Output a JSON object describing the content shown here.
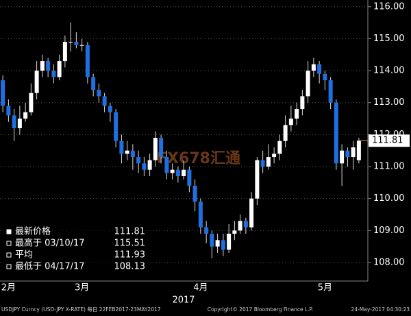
{
  "chart_data": {
    "type": "candlestick",
    "categories": [
      null,
      "2月",
      null,
      null,
      null,
      null,
      null,
      null,
      null,
      null,
      null,
      null,
      null,
      null,
      "3月",
      null,
      null,
      null,
      null,
      null,
      null,
      null,
      null,
      null,
      null,
      null,
      null,
      null,
      null,
      null,
      null,
      null,
      null,
      null,
      null,
      "4月",
      null,
      null,
      null,
      null,
      null,
      null,
      null,
      null,
      null,
      null,
      null,
      null,
      null,
      null,
      null,
      null,
      null,
      null,
      null,
      null,
      null,
      "5月",
      null,
      null,
      null,
      null,
      null,
      null
    ],
    "open": [
      113.7,
      112.9,
      112.6,
      112.2,
      112.5,
      112.7,
      113.3,
      114.0,
      114.3,
      114.0,
      113.8,
      114.3,
      114.9,
      114.9,
      114.8,
      114.8,
      113.8,
      113.4,
      113.2,
      112.9,
      112.7,
      111.8,
      111.4,
      111.5,
      111.3,
      111.1,
      110.9,
      111.2,
      111.9,
      111.3,
      110.8,
      110.9,
      110.7,
      110.9,
      110.4,
      109.9,
      109.1,
      108.9,
      108.5,
      108.7,
      108.4,
      108.9,
      109.0,
      109.3,
      109.1,
      110.0,
      111.2,
      111.0,
      111.3,
      111.4,
      111.8,
      112.3,
      112.5,
      112.8,
      113.2,
      114.0,
      114.2,
      113.9,
      113.7,
      113.0,
      111.1,
      111.5,
      111.3,
      111.2
    ],
    "high": [
      113.85,
      113.1,
      112.8,
      112.9,
      113.0,
      113.6,
      114.3,
      114.5,
      114.4,
      114.2,
      114.5,
      115.1,
      115.51,
      115.2,
      115.0,
      114.9,
      113.9,
      113.6,
      113.3,
      113.0,
      112.8,
      112.0,
      111.8,
      111.7,
      111.5,
      111.3,
      111.4,
      112.1,
      112.0,
      111.5,
      111.1,
      111.0,
      111.2,
      111.0,
      110.6,
      110.0,
      109.3,
      109.0,
      108.9,
      108.9,
      109.2,
      109.3,
      109.5,
      109.4,
      110.2,
      111.3,
      111.5,
      111.7,
      111.6,
      112.0,
      112.6,
      112.9,
      113.0,
      113.4,
      114.3,
      114.4,
      114.3,
      114.0,
      113.8,
      113.1,
      111.7,
      111.6,
      111.8,
      111.9
    ],
    "low": [
      112.7,
      112.4,
      111.8,
      112.0,
      112.4,
      112.6,
      113.1,
      113.8,
      113.8,
      113.6,
      113.7,
      114.1,
      114.6,
      114.7,
      114.6,
      113.6,
      113.2,
      113.0,
      112.7,
      112.4,
      111.6,
      111.1,
      111.2,
      110.9,
      110.8,
      110.7,
      110.7,
      111.0,
      111.1,
      110.6,
      110.6,
      110.5,
      110.6,
      110.2,
      109.6,
      108.9,
      108.6,
      108.13,
      108.3,
      108.2,
      108.3,
      108.7,
      108.9,
      108.9,
      109.0,
      109.8,
      110.8,
      110.9,
      111.1,
      111.2,
      111.6,
      112.1,
      112.3,
      112.6,
      113.0,
      113.8,
      113.6,
      113.4,
      112.8,
      110.9,
      110.4,
      111.0,
      110.9,
      111.1
    ],
    "close": [
      112.9,
      112.6,
      112.2,
      112.5,
      112.7,
      113.3,
      114.0,
      114.3,
      114.0,
      113.8,
      114.3,
      114.9,
      114.9,
      114.8,
      114.8,
      113.8,
      113.4,
      113.2,
      112.9,
      112.7,
      111.8,
      111.4,
      111.5,
      111.3,
      111.1,
      110.9,
      111.2,
      111.9,
      111.3,
      110.8,
      110.9,
      110.7,
      110.9,
      110.4,
      109.9,
      109.1,
      108.9,
      108.5,
      108.7,
      108.4,
      108.9,
      109.0,
      109.3,
      109.1,
      110.0,
      111.2,
      111.0,
      111.3,
      111.4,
      111.8,
      112.3,
      112.5,
      112.8,
      113.2,
      114.0,
      114.2,
      113.9,
      113.7,
      113.0,
      111.1,
      111.5,
      111.3,
      111.6,
      111.81
    ],
    "up_color": "#ffffff",
    "down_color": "#1f6fe0",
    "last_color": "#f08a24",
    "ylim": [
      107.42,
      116.21
    ],
    "yticks": [
      {
        "value": 108,
        "label": "108.00"
      },
      {
        "value": 109,
        "label": "109.00"
      },
      {
        "value": 110,
        "label": "110.00"
      },
      {
        "value": 111,
        "label": "111.00"
      },
      {
        "value": 112,
        "label": "112.00"
      },
      {
        "value": 113,
        "label": "113.00"
      },
      {
        "value": 114,
        "label": "114.00"
      },
      {
        "value": 115,
        "label": "115.00"
      },
      {
        "value": 116,
        "label": "116.00"
      }
    ],
    "grid": true,
    "x_year": "2017",
    "watermark": "FX678汇通",
    "stats": [
      {
        "label": "最新价格",
        "value": 111.81
      },
      {
        "label": "最高于 03/10/17",
        "value": 115.51
      },
      {
        "label": "平均",
        "value": 111.93
      },
      {
        "label": "最低于 04/17/17",
        "value": 108.13
      }
    ],
    "footer_left": "USDJPY Curncy (USD-JPY X-RATE)  每日 22FEB2017-23MAY2017",
    "footer_center": "Copyright© 2017 Bloomberg Finance L.P.",
    "footer_right": "24-May-2017 04:30:23"
  }
}
